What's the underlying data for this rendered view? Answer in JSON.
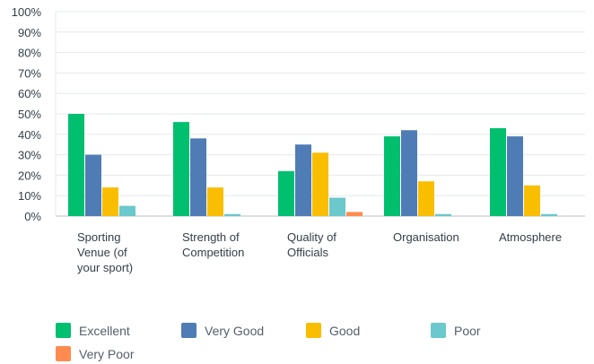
{
  "chart_data": {
    "type": "bar",
    "title": "",
    "xlabel": "",
    "ylabel": "",
    "ylim": [
      0,
      100
    ],
    "yticks": [
      "0%",
      "10%",
      "20%",
      "30%",
      "40%",
      "50%",
      "60%",
      "70%",
      "80%",
      "90%",
      "100%"
    ],
    "categories": [
      "Sporting Venue (of your sport)",
      "Strength of Competition",
      "Quality of Officials",
      "Organisation",
      "Atmosphere"
    ],
    "category_lines": [
      [
        "Sporting",
        "Venue (of",
        "your sport)"
      ],
      [
        "Strength of",
        "Competition"
      ],
      [
        "Quality of",
        "Officials"
      ],
      [
        "Organisation"
      ],
      [
        "Atmosphere"
      ]
    ],
    "series": [
      {
        "name": "Excellent",
        "color": "#00bf6f",
        "values": [
          50,
          46,
          22,
          39,
          43
        ]
      },
      {
        "name": "Very Good",
        "color": "#507cb6",
        "values": [
          30,
          38,
          35,
          42,
          39
        ]
      },
      {
        "name": "Good",
        "color": "#f9be00",
        "values": [
          14,
          14,
          31,
          17,
          15
        ]
      },
      {
        "name": "Poor",
        "color": "#6bc8cd",
        "values": [
          5,
          1,
          9,
          1,
          1
        ]
      },
      {
        "name": "Very Poor",
        "color": "#ff8b4f",
        "values": [
          0,
          0,
          2,
          0,
          0
        ]
      }
    ],
    "legend_position": "bottom",
    "grid": true
  }
}
